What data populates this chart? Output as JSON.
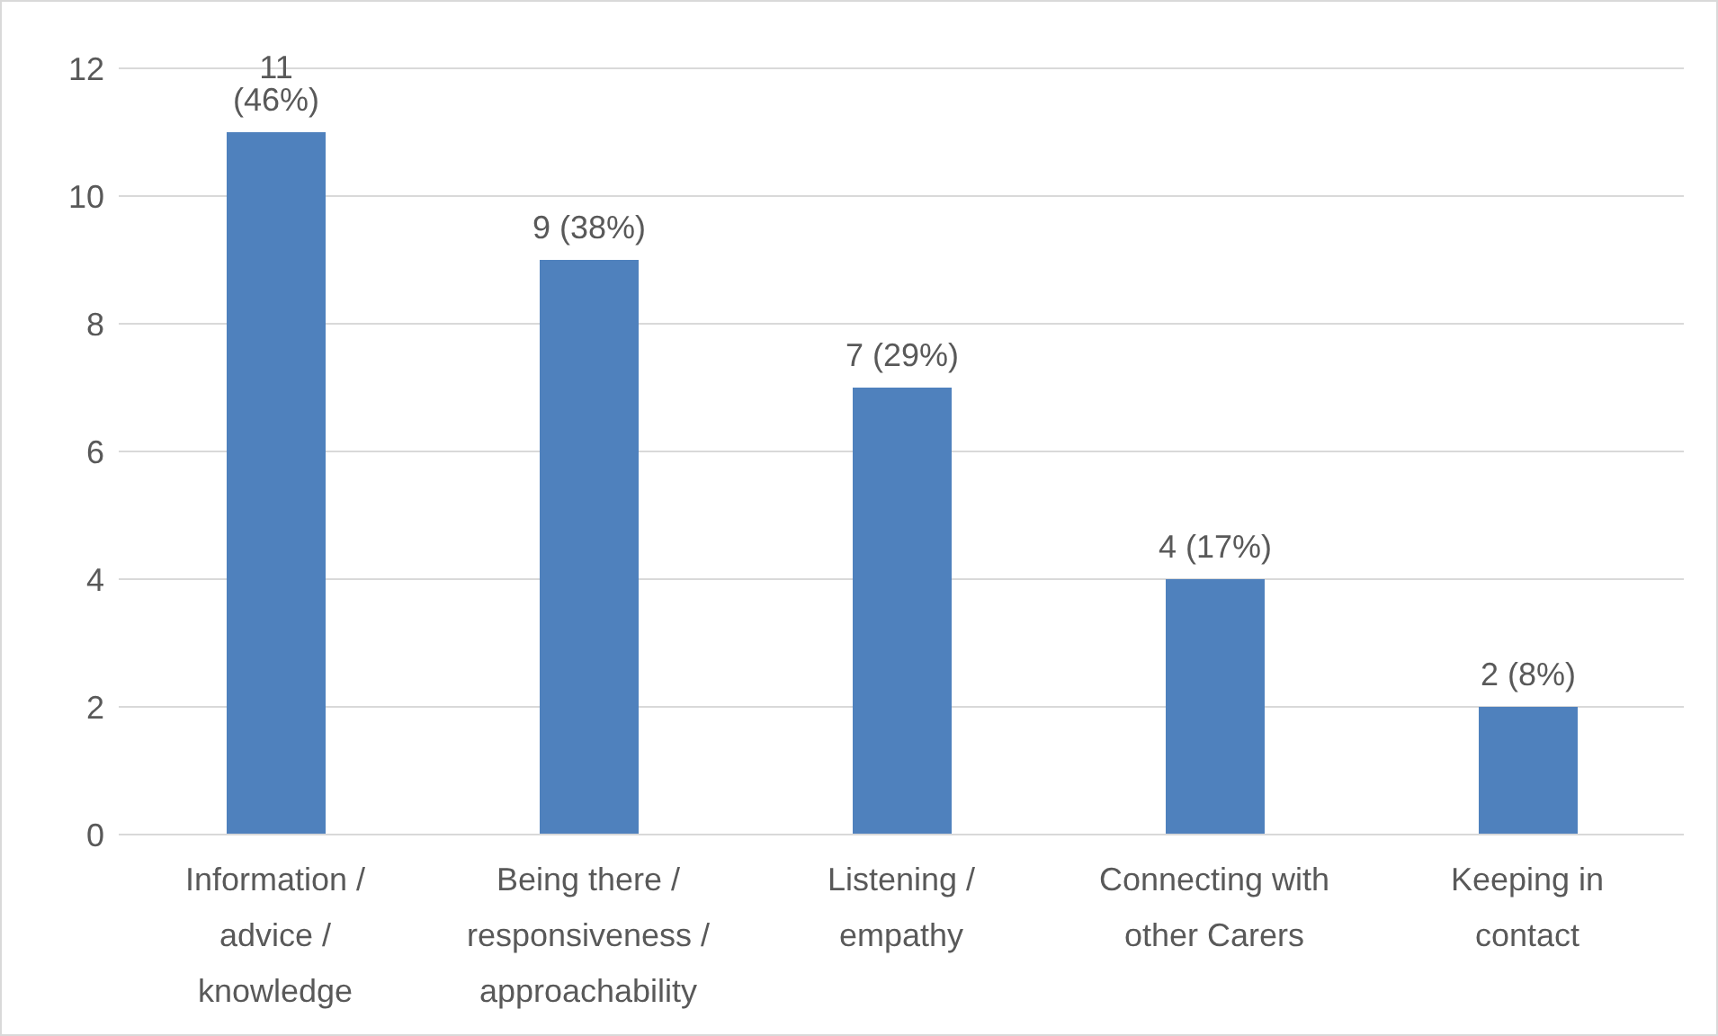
{
  "chart_data": {
    "type": "bar",
    "categories": [
      "Information / advice / knowledge",
      "Being there / responsiveness / approachability",
      "Listening  / empathy",
      "Connecting with other Carers",
      "Keeping in contact"
    ],
    "values": [
      11,
      9,
      7,
      4,
      2
    ],
    "color": "#4f81bd",
    "value_labels": [
      "11 (46%)",
      "9 (38%)",
      "7 (29%)",
      "4 (17%)",
      "2 (8%)"
    ],
    "ylim": [
      0,
      12
    ],
    "yticks": [
      0,
      2,
      4,
      6,
      8,
      10,
      12
    ],
    "grid": "y"
  }
}
